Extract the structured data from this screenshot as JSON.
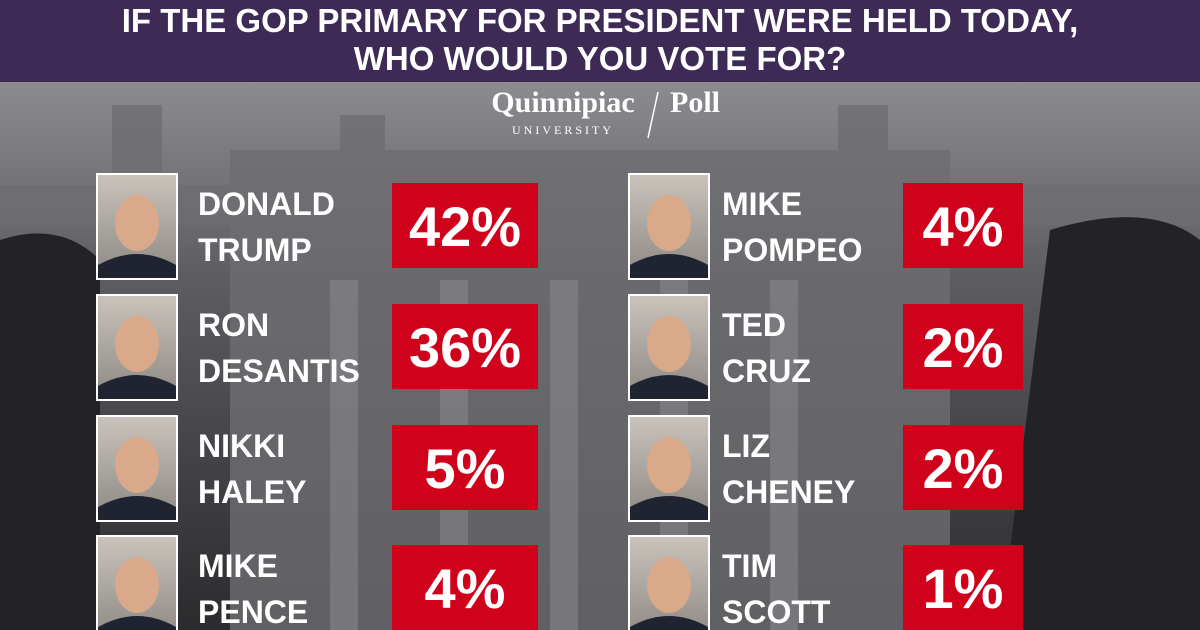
{
  "header": {
    "title": [
      "IF THE GOP PRIMARY FOR PRESIDENT WERE HELD TODAY,",
      "WHO WOULD YOU VOTE FOR?"
    ]
  },
  "logo": {
    "name": "Quinnipiac",
    "sub": "UNIVERSITY",
    "poll": "Poll"
  },
  "candidates": [
    {
      "name": [
        "DONALD",
        "TRUMP"
      ],
      "result": "42%"
    },
    {
      "name": [
        "RON",
        "DESANTIS"
      ],
      "result": "36%"
    },
    {
      "name": [
        "NIKKI",
        "HALEY"
      ],
      "result": "5%"
    },
    {
      "name": [
        "MIKE",
        "PENCE"
      ],
      "result": "4%"
    },
    {
      "name": [
        "MIKE",
        "POMPEO"
      ],
      "result": "4%"
    },
    {
      "name": [
        "TED",
        "CRUZ"
      ],
      "result": "2%"
    },
    {
      "name": [
        "LIZ",
        "CHENEY"
      ],
      "result": "2%"
    },
    {
      "name": [
        "TIM",
        "SCOTT"
      ],
      "result": "1%"
    }
  ]
}
